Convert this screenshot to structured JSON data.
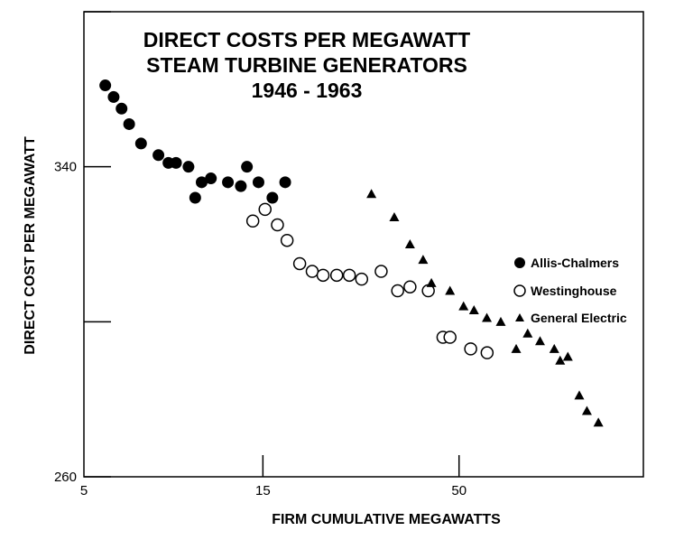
{
  "colors": {
    "ink": "#000000",
    "background": "#ffffff"
  },
  "chart_data": {
    "type": "scatter",
    "title": [
      "DIRECT COSTS PER MEGAWATT",
      "STEAM TURBINE GENERATORS",
      "1946 - 1963"
    ],
    "xlabel": "FIRM CUMULATIVE MEGAWATTS",
    "ylabel": "DIRECT COST PER MEGAWATT",
    "x_scale": "log",
    "xlim": [
      5,
      155
    ],
    "ylim": [
      260,
      380
    ],
    "x_ticks": [
      5,
      15,
      50
    ],
    "y_ticks": [
      260,
      300,
      340
    ],
    "y_tick_labels": [
      "260",
      "",
      "340"
    ],
    "y_minor_ticks": [
      380
    ],
    "legend": [
      {
        "label": "Allis-Chalmers",
        "marker": "filled-circle"
      },
      {
        "label": "Westinghouse",
        "marker": "open-circle"
      },
      {
        "label": "General Electric",
        "marker": "filled-triangle"
      }
    ],
    "series": [
      {
        "name": "Allis-Chalmers",
        "marker": "filled-circle",
        "x": [
          5.7,
          6.0,
          6.3,
          6.6,
          7.1,
          7.9,
          8.4,
          8.8,
          9.5,
          9.9,
          10.3,
          10.9,
          12.1,
          13.1,
          13.6,
          14.6,
          15.9,
          17.2
        ],
        "y": [
          361,
          358,
          355,
          351,
          346,
          343,
          341,
          341,
          340,
          332,
          336,
          337,
          336,
          335,
          340,
          336,
          332,
          336
        ]
      },
      {
        "name": "Westinghouse",
        "marker": "open-circle",
        "x": [
          14.1,
          15.2,
          16.4,
          17.4,
          18.8,
          20.3,
          21.7,
          23.6,
          25.5,
          27.5,
          31.0,
          34.3,
          37.0,
          41.4,
          45.3,
          47.3,
          53.7,
          59.4
        ],
        "y": [
          326,
          329,
          325,
          321,
          315,
          313,
          312,
          312,
          312,
          311,
          313,
          308,
          309,
          308,
          296,
          296,
          293,
          292
        ]
      },
      {
        "name": "General Electric",
        "marker": "filled-triangle",
        "x": [
          29.2,
          33.6,
          37.0,
          40.1,
          42.2,
          47.3,
          51.4,
          54.8,
          59.3,
          64.6,
          71.0,
          76.2,
          82.2,
          89.7,
          93.0,
          97.5,
          104.6,
          109.6,
          117.6
        ],
        "y": [
          333,
          327,
          320,
          316,
          310,
          308,
          304,
          303,
          301,
          300,
          293,
          297,
          295,
          293,
          290,
          291,
          281,
          277,
          274
        ]
      }
    ]
  }
}
